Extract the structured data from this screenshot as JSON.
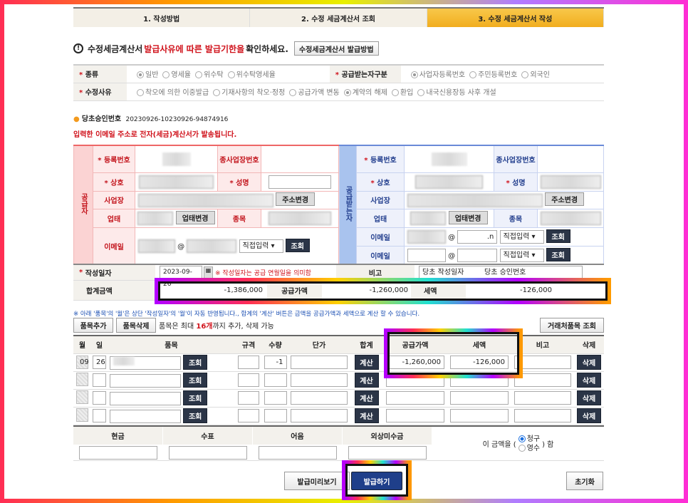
{
  "steps": [
    "1. 작성방법",
    "2. 수정 세금계산서 조회",
    "3. 수정 세금계산서 작성"
  ],
  "notice": {
    "a": "수정세금계산서 ",
    "b": "발급사유에 따른 발급기한을",
    "c": " 확인하세요.",
    "button": "수정세금계산서 발급방법"
  },
  "type": {
    "label": "종류",
    "options": [
      "일반",
      "영세율",
      "위수탁",
      "위수탁영세율"
    ],
    "selected": "일반",
    "receiver_label": "공급받는자구분",
    "receiver_options": [
      "사업자등록번호",
      "주민등록번호",
      "외국인"
    ],
    "receiver_selected": "사업자등록번호"
  },
  "reason": {
    "label": "수정사유",
    "options": [
      "착오에 의한 이중발급",
      "기재사항의 착오·정정",
      "공급가액 변동",
      "계약의 해제",
      "환입",
      "내국신용장등 사후 개설"
    ],
    "selected": "계약의 해제"
  },
  "approval": {
    "label": "당초승인번호",
    "value": "20230926-10230926-94874916"
  },
  "email_notice": "입력한 이메일 주소로 전자(세금)계산서가 발송됩니다.",
  "supplier": {
    "title": "공급자",
    "reg": "등록번호",
    "sub": "종사업장번호",
    "name": "상호",
    "ceo": "성명",
    "addr": "사업장",
    "addr_btn": "주소변경",
    "biz": "업태",
    "biz_btn": "업태변경",
    "item": "종목",
    "email": "이메일",
    "direct": "직접입력",
    "search": "조회"
  },
  "receiver": {
    "title": "공급받는자",
    "reg": "등록번호",
    "sub": "종사업장번호",
    "name": "상호",
    "ceo": "성명",
    "addr": "사업장",
    "addr_btn": "주소변경",
    "biz": "업태",
    "biz_btn": "업태변경",
    "item": "종목",
    "email": "이메일",
    "email_domain_tail": ".n",
    "direct": "직접입력",
    "search": "조회"
  },
  "date": {
    "label": "작성일자",
    "value": "2023-09-26",
    "note": "※ 작성일자는 공급 연월일을 의미함",
    "memo_label": "비고",
    "memo_a": "당초 작성일자",
    "memo_b": "당초 승인번호"
  },
  "totals": {
    "label": "합계금액",
    "total": "-1,386,000",
    "supply_label": "공급가액",
    "supply": "-1,260,000",
    "tax_label": "세액",
    "tax": "-126,000"
  },
  "items_notice": "※ 아래 '품목'의 '월'은 상단 '작성일자'의 '월'이 자동 반영됩니다., 합계의 '계산' 버튼은 금액을 공급가액과 세액으로 계산 할 수 있습니다.",
  "item_buttons": {
    "add": "품목추가",
    "del": "품목삭제",
    "info_a": "품목은 최대 ",
    "info_b": "16개",
    "info_c": "까지 추가, 삭제 가능",
    "partner": "거래처품목 조회"
  },
  "item_headers": [
    "월",
    "일",
    "품목",
    "규격",
    "수량",
    "단가",
    "합계",
    "공급가액",
    "세액",
    "비고",
    "삭제"
  ],
  "item_row": {
    "month": "09",
    "day": "26",
    "qty": "-1",
    "supply": "-1,260,000",
    "tax": "-126,000"
  },
  "item_btn": {
    "search": "조회",
    "calc": "계산",
    "delete": "삭제"
  },
  "payment": {
    "headers": [
      "현금",
      "수표",
      "어음",
      "외상미수금"
    ],
    "prefix": "이 금액을 (",
    "opt1": "청구",
    "opt2": "영수",
    "suffix": ") 함"
  },
  "actions": {
    "preview": "발급미리보기",
    "issue": "발급하기",
    "reset": "초기화"
  }
}
